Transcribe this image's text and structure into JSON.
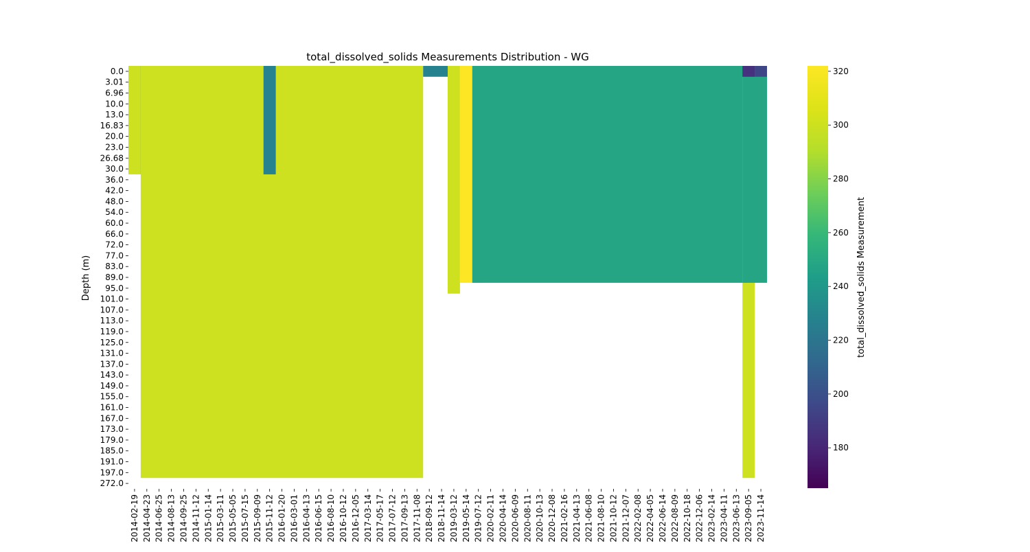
{
  "chart_data": {
    "type": "heatmap",
    "title": "total_dissolved_solids Measurements Distribution - WG",
    "ylabel": "Depth (m)",
    "xlabel": "",
    "colorbar": {
      "label": "total_dissolved_solids Measurement",
      "colormap": "viridis",
      "range": [
        165,
        322
      ],
      "ticks": [
        180,
        200,
        220,
        240,
        260,
        280,
        300,
        320
      ]
    },
    "y_ticks": [
      "0.0",
      "3.01",
      "6.96",
      "10.0",
      "13.0",
      "16.83",
      "20.0",
      "23.0",
      "26.68",
      "30.0",
      "36.0",
      "42.0",
      "48.0",
      "54.0",
      "60.0",
      "66.0",
      "72.0",
      "77.0",
      "83.0",
      "89.0",
      "95.0",
      "101.0",
      "107.0",
      "113.0",
      "119.0",
      "125.0",
      "131.0",
      "137.0",
      "143.0",
      "149.0",
      "155.0",
      "161.0",
      "167.0",
      "173.0",
      "179.0",
      "185.0",
      "191.0",
      "197.0",
      "272.0"
    ],
    "x_ticks": [
      "2014-02-19",
      "2014-04-23",
      "2014-06-25",
      "2014-08-13",
      "2014-09-25",
      "2014-11-12",
      "2015-01-14",
      "2015-03-11",
      "2015-05-05",
      "2015-07-15",
      "2015-09-09",
      "2015-11-12",
      "2016-01-20",
      "2016-03-01",
      "2016-04-13",
      "2016-06-15",
      "2016-08-10",
      "2016-10-12",
      "2016-12-05",
      "2017-03-14",
      "2017-05-17",
      "2017-07-12",
      "2017-09-13",
      "2017-11-08",
      "2018-09-12",
      "2018-11-14",
      "2019-03-12",
      "2019-05-14",
      "2019-07-12",
      "2020-02-11",
      "2020-04-14",
      "2020-06-09",
      "2020-08-11",
      "2020-10-13",
      "2020-12-08",
      "2021-02-16",
      "2021-04-13",
      "2021-06-08",
      "2021-08-10",
      "2021-10-12",
      "2021-12-07",
      "2022-02-08",
      "2022-04-05",
      "2022-06-14",
      "2022-08-09",
      "2022-10-18",
      "2022-12-06",
      "2023-02-14",
      "2023-04-11",
      "2023-06-13",
      "2023-09-05",
      "2023-11-14"
    ],
    "series": [
      {
        "date_range": [
          "2014-02-19",
          "2014-04-23"
        ],
        "depth_range": [
          "0.0",
          "30.0"
        ],
        "value": 300
      },
      {
        "date_range": [
          "2014-04-23",
          "2014-04-23"
        ],
        "depth_range": [
          "0.0",
          "30.0"
        ],
        "value": 228
      },
      {
        "date_range": [
          "2014-04-23",
          "2017-11-08"
        ],
        "depth_range": [
          "0.0",
          "197.0"
        ],
        "value": 300
      },
      {
        "date_range": [
          "2015-11-12",
          "2015-11-12"
        ],
        "depth_range": [
          "0.0",
          "30.0"
        ],
        "value": 228
      },
      {
        "date_range": [
          "2018-09-12",
          "2018-11-14"
        ],
        "depth_range": [
          "0.0",
          "0.0"
        ],
        "value": 228
      },
      {
        "date_range": [
          "2019-03-12",
          "2019-03-12"
        ],
        "depth_range": [
          "0.0",
          "95.0"
        ],
        "value": 300
      },
      {
        "date_range": [
          "2019-05-14",
          "2019-07-12"
        ],
        "depth_range": [
          "0.0",
          "89.0"
        ],
        "value": 322
      },
      {
        "date_range": [
          "2019-07-12",
          "2023-09-05"
        ],
        "depth_range": [
          "0.0",
          "89.0"
        ],
        "value": 248
      },
      {
        "date_range": [
          "2023-09-05",
          "2023-09-05"
        ],
        "depth_range": [
          "0.0",
          "197.0"
        ],
        "value": 300
      },
      {
        "date_range": [
          "2023-09-05",
          "2023-11-14"
        ],
        "depth_range": [
          "0.0",
          "89.0"
        ],
        "value": 248
      },
      {
        "date_range": [
          "2023-09-05",
          "2023-09-05"
        ],
        "depth_range": [
          "0.0",
          "0.0"
        ],
        "value": 185
      },
      {
        "date_range": [
          "2023-11-14",
          "2023-11-14"
        ],
        "depth_range": [
          "0.0",
          "0.0"
        ],
        "value": 195
      }
    ]
  }
}
